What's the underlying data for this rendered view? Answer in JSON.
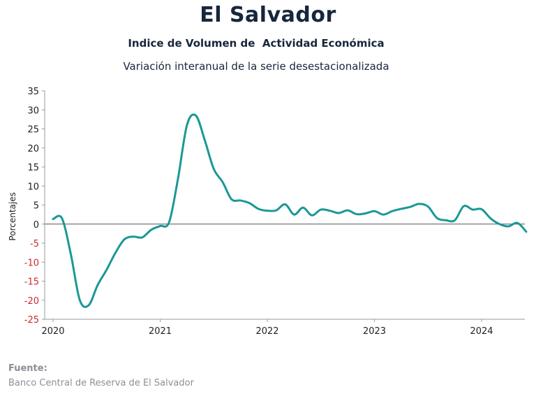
{
  "header": {
    "title": "El Salvador",
    "subtitle": "Indice de Volumen de  Actividad Económica",
    "subtitle2": "Variación interanual de la serie desestacionalizada"
  },
  "footer": {
    "source_label": "Fuente:",
    "source_text": "Banco Central de Reserva de El Salvador"
  },
  "chart_data": {
    "type": "line",
    "title": "Indice de Volumen de  Actividad Económica",
    "subtitle": "Variación interanual de la serie desestacionalizada",
    "xlabel": "",
    "ylabel": "Porcentajes",
    "ylim": [
      -25,
      35
    ],
    "yticks": [
      35,
      30,
      25,
      20,
      15,
      10,
      5,
      0,
      -5,
      -10,
      -15,
      -20,
      -25
    ],
    "xticks": [
      "2020",
      "2021",
      "2022",
      "2023",
      "2024"
    ],
    "xlim": [
      "2020-01",
      "2024-06"
    ],
    "grid": false,
    "line_color": "#1a9896",
    "negative_tick_color": "#cc2a2a",
    "series": [
      {
        "x": [
          "2020-01",
          "2020-02",
          "2020-03",
          "2020-04",
          "2020-05",
          "2020-06",
          "2020-07",
          "2020-08",
          "2020-09",
          "2020-10",
          "2020-11",
          "2020-12",
          "2021-01",
          "2021-02",
          "2021-03",
          "2021-04",
          "2021-05",
          "2021-06",
          "2021-07",
          "2021-08",
          "2021-09",
          "2021-10",
          "2021-11",
          "2021-12",
          "2022-01",
          "2022-02",
          "2022-03",
          "2022-04",
          "2022-05",
          "2022-06",
          "2022-07",
          "2022-08",
          "2022-09",
          "2022-10",
          "2022-11",
          "2022-12",
          "2023-01",
          "2023-02",
          "2023-03",
          "2023-04",
          "2023-05",
          "2023-06",
          "2023-07",
          "2023-08",
          "2023-09",
          "2023-10",
          "2023-11",
          "2023-12",
          "2024-01",
          "2024-02",
          "2024-03",
          "2024-04",
          "2024-05",
          "2024-06"
        ],
        "values": [
          1.3,
          1.5,
          -8.0,
          -20.0,
          -21.3,
          -16.0,
          -12.0,
          -7.5,
          -4.0,
          -3.3,
          -3.5,
          -1.5,
          -0.5,
          0.5,
          12.0,
          26.0,
          28.5,
          22.0,
          14.5,
          11.0,
          6.5,
          6.2,
          5.5,
          4.0,
          3.5,
          3.6,
          5.2,
          2.5,
          4.3,
          2.3,
          3.8,
          3.5,
          2.9,
          3.6,
          2.6,
          2.8,
          3.4,
          2.5,
          3.4,
          4.0,
          4.5,
          5.3,
          4.6,
          1.6,
          1.0,
          1.0,
          4.7,
          3.8,
          3.9,
          1.5,
          0.0,
          -0.6,
          0.3,
          -2.0
        ]
      }
    ]
  }
}
